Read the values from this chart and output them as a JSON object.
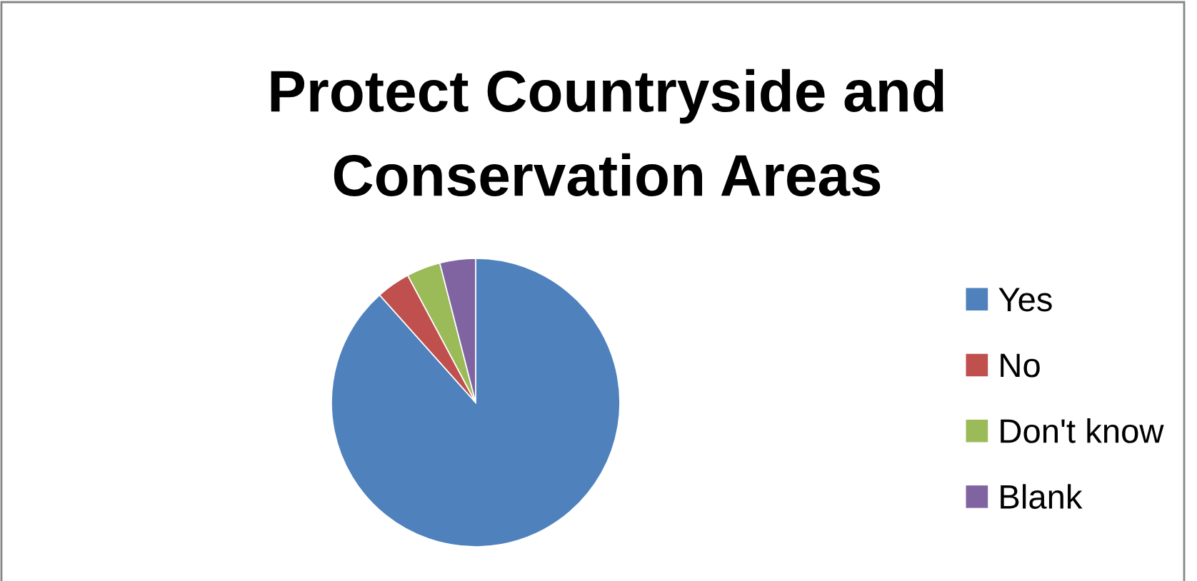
{
  "chart_data": {
    "type": "pie",
    "title": "Protect Countryside and\nConservation Areas",
    "categories": [
      "Yes",
      "No",
      "Don't know",
      "Blank"
    ],
    "values": [
      88.4,
      3.8,
      3.8,
      4.0
    ],
    "colors": [
      "#4f81bd",
      "#c0504d",
      "#9bbb59",
      "#8064a2"
    ],
    "legend": "right"
  }
}
